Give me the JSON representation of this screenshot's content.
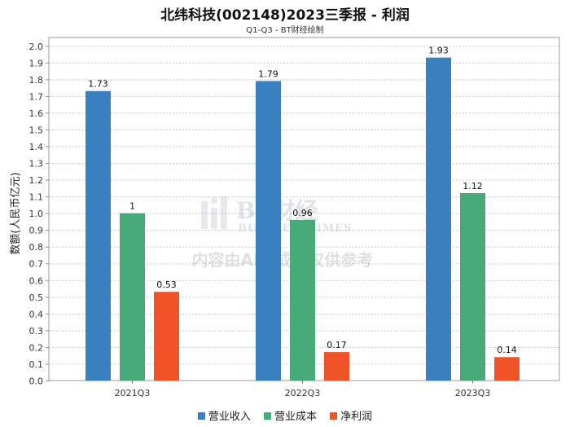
{
  "chart_data": {
    "type": "bar",
    "title": "北纬科技(002148)2023三季报 - 利润",
    "subtitle": "Q1-Q3 - BT财经绘制",
    "ylabel": "数额(人民币亿元)",
    "xlabel": "",
    "categories": [
      "2021Q3",
      "2022Q3",
      "2023Q3"
    ],
    "series": [
      {
        "name": "营业收入",
        "color": "#3a80c1",
        "values": [
          1.73,
          1.79,
          1.93
        ],
        "labels": [
          "1.73",
          "1.79",
          "1.93"
        ]
      },
      {
        "name": "营业成本",
        "color": "#46ab78",
        "values": [
          1.0,
          0.96,
          1.12
        ],
        "labels": [
          "1",
          "0.96",
          "1.12"
        ]
      },
      {
        "name": "净利润",
        "color": "#ef5327",
        "values": [
          0.53,
          0.17,
          0.14
        ],
        "labels": [
          "0.53",
          "0.17",
          "0.14"
        ]
      }
    ],
    "ylim": [
      0,
      2.05
    ],
    "yticks": [
      "0.0",
      "0.1",
      "0.2",
      "0.3",
      "0.4",
      "0.5",
      "0.6",
      "0.7",
      "0.8",
      "0.9",
      "1.0",
      "1.1",
      "1.2",
      "1.3",
      "1.4",
      "1.5",
      "1.6",
      "1.7",
      "1.8",
      "1.9",
      "2.0"
    ],
    "grid": true,
    "legend_position": "bottom"
  },
  "watermark": {
    "brand": "BT财经",
    "brand_sub": "BUSINESSTIMES",
    "notice": "内容由AI生成，仅供参考"
  }
}
